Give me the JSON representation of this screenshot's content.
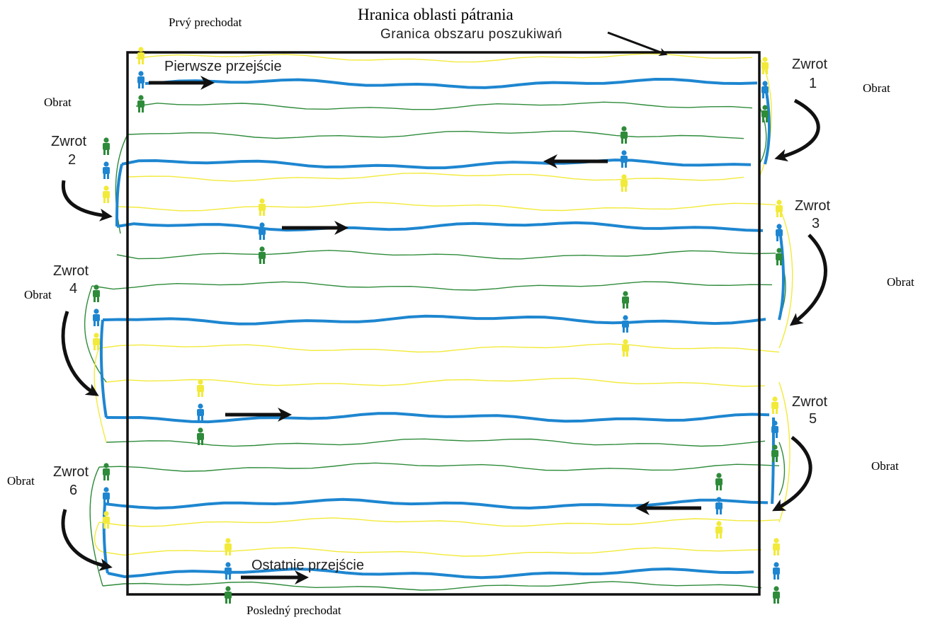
{
  "labels": {
    "boundary_sk": "Hranica oblasti pátrania",
    "boundary_pl": "Granica obszaru  poszukiwań",
    "first_pass_sk": "Prvý prechodat",
    "first_pass_pl": "Pierwsze przejście",
    "last_pass_sk": "Posledný prechodat",
    "last_pass_pl": "Ostatnie przejście",
    "turn_sk": "Obrat",
    "turn_pl": "Zwrot",
    "turn_numbers": [
      "1",
      "2",
      "3",
      "4",
      "5",
      "6"
    ]
  },
  "colors": {
    "boundary": "#111111",
    "center_walker": "#1e86d0",
    "yellow_walker": "#f2ea3a",
    "green_walker": "#2e8b3a",
    "arrow": "#111111",
    "background": "#ffffff"
  },
  "icons": {
    "walker": "person-icon",
    "direction": "arrow-icon",
    "turn": "curved-arrow-icon"
  }
}
